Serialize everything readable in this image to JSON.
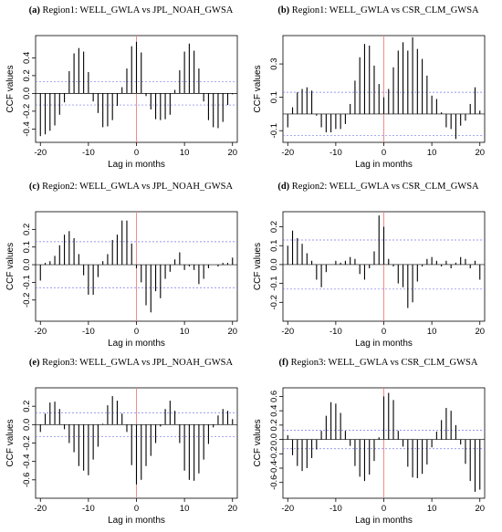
{
  "chart_data": [
    {
      "type": "bar",
      "label": "(a)",
      "title": "Region1: WELL_GWLA vs JPL_NOAH_GWSA",
      "xlabel": "Lag in months",
      "ylabel": "CCF values",
      "xlim": [
        -21,
        21
      ],
      "ylim": [
        -0.55,
        0.65
      ],
      "yticks": [
        -0.4,
        -0.2,
        0.0,
        0.2,
        0.4
      ],
      "xticks": [
        -20,
        -10,
        0,
        10,
        20
      ],
      "conf": 0.13,
      "lags": [
        -20,
        -19,
        -18,
        -17,
        -16,
        -15,
        -14,
        -13,
        -12,
        -11,
        -10,
        -9,
        -8,
        -7,
        -6,
        -5,
        -4,
        -3,
        -2,
        -1,
        0,
        1,
        2,
        3,
        4,
        5,
        6,
        7,
        8,
        9,
        10,
        11,
        12,
        13,
        14,
        15,
        16,
        17,
        18,
        19,
        20
      ],
      "values": [
        -0.48,
        -0.46,
        -0.42,
        -0.36,
        -0.24,
        -0.1,
        0.25,
        0.45,
        0.51,
        0.47,
        0.24,
        -0.09,
        -0.22,
        -0.38,
        -0.37,
        -0.3,
        -0.14,
        0.07,
        0.28,
        0.53,
        0.58,
        0.46,
        -0.03,
        -0.18,
        -0.29,
        -0.3,
        -0.29,
        -0.24,
        0.04,
        0.26,
        0.47,
        0.56,
        0.48,
        0.28,
        -0.09,
        -0.3,
        -0.38,
        -0.39,
        -0.32,
        -0.13,
        -0.01
      ]
    },
    {
      "type": "bar",
      "label": "(b)",
      "title": "Region1: WELL_GWLA vs CSR_CLM_GWSA",
      "xlabel": "Lag in months",
      "ylabel": "CCF values",
      "xlim": [
        -21,
        21
      ],
      "ylim": [
        -0.17,
        0.47
      ],
      "yticks": [
        -0.1,
        0.1,
        0.3
      ],
      "xticks": [
        -20,
        -10,
        0,
        10,
        20
      ],
      "conf": 0.13,
      "lags": [
        -20,
        -19,
        -18,
        -17,
        -16,
        -15,
        -14,
        -13,
        -12,
        -11,
        -10,
        -9,
        -8,
        -7,
        -6,
        -5,
        -4,
        -3,
        -2,
        -1,
        0,
        1,
        2,
        3,
        4,
        5,
        6,
        7,
        8,
        9,
        10,
        11,
        12,
        13,
        14,
        15,
        16,
        17,
        18,
        19,
        20
      ],
      "values": [
        -0.08,
        0.04,
        0.13,
        0.15,
        0.16,
        0.14,
        -0.01,
        -0.08,
        -0.11,
        -0.11,
        -0.09,
        -0.09,
        -0.06,
        0.06,
        0.2,
        0.34,
        0.42,
        0.41,
        0.29,
        0.18,
        0.1,
        0.15,
        0.28,
        0.38,
        0.43,
        0.38,
        0.46,
        0.39,
        0.33,
        0.23,
        0.11,
        0.09,
        0.01,
        -0.08,
        -0.09,
        -0.15,
        -0.07,
        -0.04,
        0.06,
        0.16,
        0.02
      ]
    },
    {
      "type": "bar",
      "label": "(c)",
      "title": "Region2: WELL_GWLA vs JPL_NOAH_GWSA",
      "xlabel": "Lag in months",
      "ylabel": "CCF values",
      "xlim": [
        -21,
        21
      ],
      "ylim": [
        -0.32,
        0.3
      ],
      "yticks": [
        -0.2,
        -0.1,
        0.0,
        0.1,
        0.2
      ],
      "xticks": [
        -20,
        -10,
        0,
        10,
        20
      ],
      "conf": 0.13,
      "lags": [
        -20,
        -19,
        -18,
        -17,
        -16,
        -15,
        -14,
        -13,
        -12,
        -11,
        -10,
        -9,
        -8,
        -7,
        -6,
        -5,
        -4,
        -3,
        -2,
        -1,
        0,
        1,
        2,
        3,
        4,
        5,
        6,
        7,
        8,
        9,
        10,
        11,
        12,
        13,
        14,
        15,
        16,
        17,
        18,
        19,
        20
      ],
      "values": [
        -0.09,
        0.01,
        0.02,
        0.05,
        0.11,
        0.17,
        0.19,
        0.15,
        0.06,
        -0.06,
        -0.17,
        -0.17,
        -0.07,
        0.02,
        0.06,
        0.14,
        0.17,
        0.25,
        0.25,
        0.12,
        -0.02,
        -0.1,
        -0.23,
        -0.27,
        -0.15,
        -0.19,
        -0.08,
        -0.04,
        0.03,
        0.07,
        -0.03,
        -0.01,
        -0.03,
        -0.11,
        -0.08,
        -0.02,
        0.0,
        -0.01,
        0.01,
        0.01,
        0.04
      ]
    },
    {
      "type": "bar",
      "label": "(d)",
      "title": "Region2: WELL_GWLA vs CSR_CLM_GWSA",
      "xlabel": "Lag in months",
      "ylabel": "CCF values",
      "xlim": [
        -21,
        21
      ],
      "ylim": [
        -0.3,
        0.28
      ],
      "yticks": [
        -0.2,
        -0.1,
        0.0,
        0.1,
        0.2
      ],
      "xticks": [
        -20,
        -10,
        0,
        10,
        20
      ],
      "conf": 0.13,
      "lags": [
        -20,
        -19,
        -18,
        -17,
        -16,
        -15,
        -14,
        -13,
        -12,
        -11,
        -10,
        -9,
        -8,
        -7,
        -6,
        -5,
        -4,
        -3,
        -2,
        -1,
        0,
        1,
        2,
        3,
        4,
        5,
        6,
        7,
        8,
        9,
        10,
        11,
        12,
        13,
        14,
        15,
        16,
        17,
        18,
        19,
        20
      ],
      "values": [
        0.1,
        0.18,
        0.14,
        0.11,
        0.06,
        0.02,
        -0.08,
        -0.12,
        -0.04,
        0.0,
        0.02,
        0.01,
        0.02,
        0.04,
        0.03,
        -0.05,
        -0.08,
        -0.02,
        0.07,
        0.26,
        0.2,
        0.03,
        -0.01,
        -0.1,
        -0.12,
        -0.23,
        -0.2,
        -0.09,
        -0.01,
        0.03,
        0.04,
        0.02,
        -0.01,
        0.02,
        -0.02,
        0.01,
        0.04,
        0.03,
        -0.02,
        0.02,
        -0.08
      ]
    },
    {
      "type": "bar",
      "label": "(e)",
      "title": "Region3: WELL_GWLA vs JPL_NOAH_GWSA",
      "xlabel": "Lag in months",
      "ylabel": "CCF values",
      "xlim": [
        -21,
        21
      ],
      "ylim": [
        -0.8,
        0.4
      ],
      "yticks": [
        -0.6,
        -0.4,
        -0.2,
        0.0,
        0.2
      ],
      "xticks": [
        -20,
        -10,
        0,
        10,
        20
      ],
      "conf": 0.13,
      "lags": [
        -20,
        -19,
        -18,
        -17,
        -16,
        -15,
        -14,
        -13,
        -12,
        -11,
        -10,
        -9,
        -8,
        -7,
        -6,
        -5,
        -4,
        -3,
        -2,
        -1,
        0,
        1,
        2,
        3,
        4,
        5,
        6,
        7,
        8,
        9,
        10,
        11,
        12,
        13,
        14,
        15,
        16,
        17,
        18,
        19,
        20
      ],
      "values": [
        -0.08,
        0.12,
        0.24,
        0.25,
        0.17,
        -0.05,
        -0.2,
        -0.3,
        -0.45,
        -0.5,
        -0.55,
        -0.38,
        -0.24,
        0.01,
        0.21,
        0.31,
        0.26,
        0.12,
        -0.08,
        -0.44,
        -0.65,
        -0.6,
        -0.45,
        -0.34,
        -0.2,
        -0.02,
        0.17,
        0.26,
        0.15,
        -0.2,
        -0.5,
        -0.6,
        -0.61,
        -0.53,
        -0.38,
        -0.21,
        -0.03,
        0.1,
        0.17,
        0.15,
        0.06
      ]
    },
    {
      "type": "bar",
      "label": "(f)",
      "title": "Region3: WELL_GWLA vs CSR_CLM_GWSA",
      "xlabel": "Lag in months",
      "ylabel": "CCF values",
      "xlim": [
        -21,
        21
      ],
      "ylim": [
        -0.82,
        0.72
      ],
      "yticks": [
        -0.6,
        -0.4,
        -0.2,
        0.0,
        0.2,
        0.4,
        0.6
      ],
      "xticks": [
        -20,
        -10,
        0,
        10,
        20
      ],
      "conf": 0.13,
      "lags": [
        -20,
        -19,
        -18,
        -17,
        -16,
        -15,
        -14,
        -13,
        -12,
        -11,
        -10,
        -9,
        -8,
        -7,
        -6,
        -5,
        -4,
        -3,
        -2,
        -1,
        0,
        1,
        2,
        3,
        4,
        5,
        6,
        7,
        8,
        9,
        10,
        11,
        12,
        13,
        14,
        15,
        16,
        17,
        18,
        19,
        20
      ],
      "values": [
        0.06,
        -0.22,
        -0.37,
        -0.44,
        -0.4,
        -0.26,
        -0.14,
        0.12,
        0.33,
        0.52,
        0.5,
        0.37,
        0.12,
        -0.09,
        -0.37,
        -0.52,
        -0.58,
        -0.49,
        -0.3,
        0.03,
        0.6,
        0.65,
        0.55,
        0.12,
        -0.1,
        -0.38,
        -0.53,
        -0.54,
        -0.48,
        -0.35,
        -0.11,
        0.11,
        0.27,
        0.44,
        0.4,
        0.2,
        -0.07,
        -0.34,
        -0.58,
        -0.73,
        -0.7
      ]
    }
  ]
}
